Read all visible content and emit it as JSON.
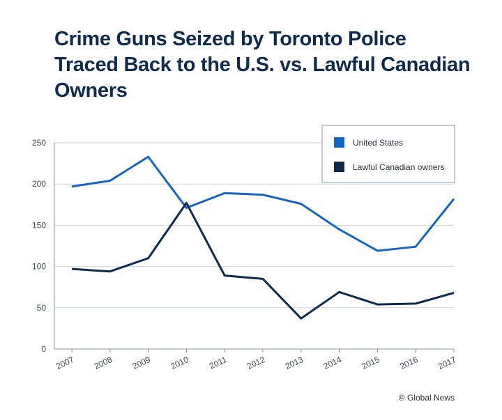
{
  "title": "Crime Guns Seized by Toronto Police Traced Back to the U.S. vs. Lawful Canadian Owners",
  "credit": "© Global News",
  "chart_data": {
    "type": "line",
    "title": "Crime Guns Seized by Toronto Police Traced Back to the U.S. vs. Lawful Canadian Owners",
    "xlabel": "",
    "ylabel": "",
    "x": [
      "2007",
      "2008",
      "2009",
      "2010",
      "2011",
      "2012",
      "2013",
      "2014",
      "2015",
      "2016",
      "2017"
    ],
    "ylim": [
      0,
      250
    ],
    "yticks": [
      0,
      50,
      100,
      150,
      200,
      250
    ],
    "grid": true,
    "legend_position": "top-right",
    "series": [
      {
        "name": "United States",
        "color": "#1565c0",
        "values": [
          197,
          204,
          233,
          171,
          189,
          187,
          176,
          145,
          119,
          124,
          182
        ]
      },
      {
        "name": "Lawful Canadian owners",
        "color": "#0d2a4d",
        "values": [
          97,
          94,
          110,
          177,
          89,
          85,
          37,
          69,
          54,
          55,
          68
        ]
      }
    ]
  }
}
